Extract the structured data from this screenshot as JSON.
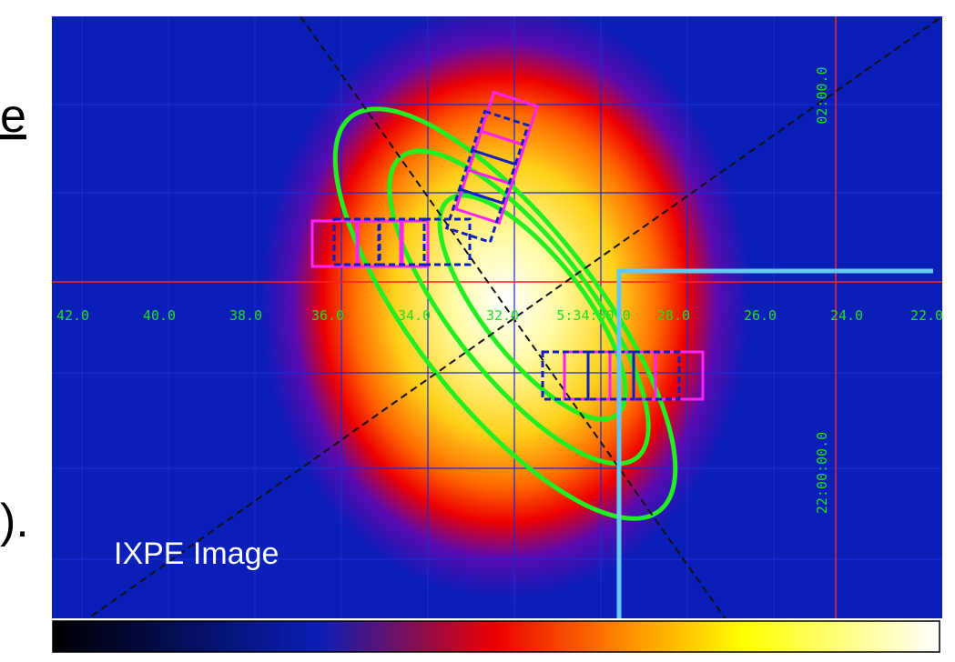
{
  "left_text": [
    "e",
    ")."
  ],
  "image": {
    "caption": "IXPE Image",
    "ra_labels": [
      "42.0",
      "40.0",
      "38.0",
      "36.0",
      "34.0",
      "32.0",
      "5:34:30.0",
      "28.0",
      "26.0",
      "24.0",
      "22.0"
    ],
    "dec_labels": [
      "02:00.0",
      "22:00:00.0"
    ]
  }
}
